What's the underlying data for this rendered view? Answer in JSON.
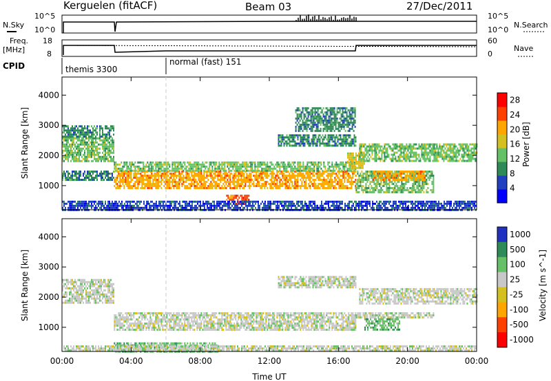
{
  "header": {
    "station": "Kerguelen (fitACF)",
    "beam": "Beam 03",
    "date": "27/Dec/2011"
  },
  "top_panels": {
    "nsky_label": "N.Sky",
    "nsky_ticks": [
      "10^5",
      "10^0"
    ],
    "nsearch_label": "N.Search",
    "nsearch_ticks": [
      "10^5",
      "10^0"
    ],
    "freq_label_1": "Freq.",
    "freq_label_2": "[MHz]",
    "freq_ticks": [
      "18",
      "8"
    ],
    "nave_label": "Nave",
    "nave_ticks": [
      "60",
      "0"
    ],
    "cpid_label": "CPID",
    "cpid_modes": [
      {
        "name": "themis 3300",
        "start_hour": 0
      },
      {
        "name": "normal (fast) 151",
        "start_hour": 6
      }
    ]
  },
  "chart_data": [
    {
      "type": "heatmap",
      "title": "",
      "xlabel": "Time UT",
      "ylabel": "Slant Range [km]",
      "xticks": [
        "00:00",
        "04:00",
        "08:00",
        "12:00",
        "16:00",
        "20:00",
        "00:00"
      ],
      "xlim_hours": [
        0,
        24
      ],
      "yticks": [
        "1000",
        "2000",
        "3000",
        "4000"
      ],
      "ylim": [
        200,
        4600
      ],
      "colorbar": {
        "label": "Power [dB]",
        "ticks": [
          "4",
          "8",
          "12",
          "16",
          "20",
          "24",
          "28"
        ],
        "range": [
          0,
          30
        ],
        "colors": [
          "#0000ff",
          "#2040c0",
          "#2e8b57",
          "#66c066",
          "#d4c020",
          "#ffa500",
          "#ff4000",
          "#ff0000"
        ]
      },
      "bands": [
        {
          "start_hour": 0.0,
          "end_hour": 3.0,
          "range_low": 1800,
          "range_high": 2600,
          "level_db": 14
        },
        {
          "start_hour": 0.0,
          "end_hour": 3.0,
          "range_low": 2600,
          "range_high": 3000,
          "level_db": 8
        },
        {
          "start_hour": 0.0,
          "end_hour": 3.0,
          "range_low": 1200,
          "range_high": 1500,
          "level_db": 10
        },
        {
          "start_hour": 3.0,
          "end_hour": 17.0,
          "range_low": 900,
          "range_high": 1500,
          "level_db": 22
        },
        {
          "start_hour": 3.0,
          "end_hour": 17.0,
          "range_low": 1500,
          "range_high": 1800,
          "level_db": 12
        },
        {
          "start_hour": 9.5,
          "end_hour": 10.8,
          "range_low": 400,
          "range_high": 700,
          "level_db": 26
        },
        {
          "start_hour": 12.5,
          "end_hour": 17.0,
          "range_low": 2300,
          "range_high": 2700,
          "level_db": 10
        },
        {
          "start_hour": 13.5,
          "end_hour": 17.0,
          "range_low": 2800,
          "range_high": 3600,
          "level_db": 8
        },
        {
          "start_hour": 16.5,
          "end_hour": 17.5,
          "range_low": 1600,
          "range_high": 2100,
          "level_db": 16
        },
        {
          "start_hour": 17.0,
          "end_hour": 21.5,
          "range_low": 800,
          "range_high": 1500,
          "level_db": 14
        },
        {
          "start_hour": 18.0,
          "end_hour": 21.0,
          "range_low": 1200,
          "range_high": 1500,
          "level_db": 22
        },
        {
          "start_hour": 17.2,
          "end_hour": 24.0,
          "range_low": 1800,
          "range_high": 2400,
          "level_db": 12
        },
        {
          "start_hour": 0.0,
          "end_hour": 24.0,
          "range_low": 200,
          "range_high": 500,
          "level_db": 6
        }
      ]
    },
    {
      "type": "heatmap",
      "title": "",
      "xlabel": "Time UT",
      "ylabel": "Slant Range [km]",
      "xticks": [
        "00:00",
        "04:00",
        "08:00",
        "12:00",
        "16:00",
        "20:00",
        "00:00"
      ],
      "xlim_hours": [
        0,
        24
      ],
      "yticks": [
        "1000",
        "2000",
        "3000",
        "4000"
      ],
      "ylim": [
        200,
        4600
      ],
      "colorbar": {
        "label": "Velocity [m s^-1]",
        "ticks": [
          "1000",
          "500",
          "100",
          "25",
          "-25",
          "-100",
          "-500",
          "-1000"
        ],
        "colors": [
          "#2030c0",
          "#2e8b57",
          "#66c066",
          "#c8c8c8",
          "#d4c020",
          "#ffa500",
          "#ff4000",
          "#ff0000"
        ]
      },
      "bands": [
        {
          "start_hour": 0.0,
          "end_hour": 3.0,
          "range_low": 1800,
          "range_high": 2600,
          "velocity": 0
        },
        {
          "start_hour": 3.0,
          "end_hour": 17.0,
          "range_low": 900,
          "range_high": 1500,
          "velocity": 0
        },
        {
          "start_hour": 12.5,
          "end_hour": 17.0,
          "range_low": 2300,
          "range_high": 2700,
          "velocity": 0
        },
        {
          "start_hour": 17.0,
          "end_hour": 21.5,
          "range_low": 1300,
          "range_high": 1500,
          "velocity": 0
        },
        {
          "start_hour": 17.2,
          "end_hour": 24.0,
          "range_low": 1800,
          "range_high": 2300,
          "velocity": 0
        },
        {
          "start_hour": 17.5,
          "end_hour": 19.5,
          "range_low": 900,
          "range_high": 1300,
          "velocity": 150
        },
        {
          "start_hour": 3.0,
          "end_hour": 9.0,
          "range_low": 200,
          "range_high": 500,
          "velocity": 150
        },
        {
          "start_hour": 0.0,
          "end_hour": 24.0,
          "range_low": 200,
          "range_high": 400,
          "velocity": 0
        }
      ]
    }
  ]
}
